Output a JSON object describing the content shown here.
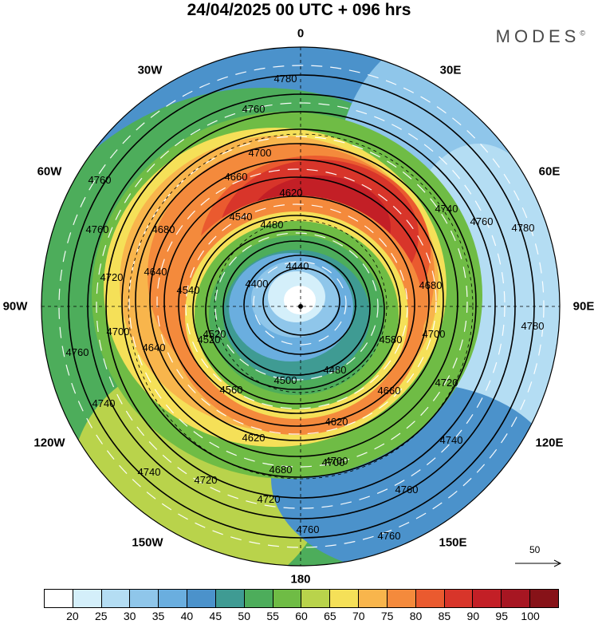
{
  "title": "24/04/2025  00 UTC  + 096 hrs",
  "brand": "MODES",
  "brand_mark": "©",
  "longitude_labels": [
    "0",
    "30E",
    "60E",
    "90E",
    "120E",
    "150E",
    "180",
    "150W",
    "120W",
    "90W",
    "60W",
    "30W"
  ],
  "contours": {
    "values": [
      "4400",
      "4440",
      "4480",
      "4500",
      "4520",
      "4540",
      "4560",
      "4580",
      "4620",
      "4640",
      "4660",
      "4680",
      "4700",
      "4720",
      "4740",
      "4760",
      "4780"
    ]
  },
  "vector_reference": {
    "label": "50"
  },
  "colorbar": {
    "colors": [
      "#ffffff",
      "#d4effa",
      "#b4ddf3",
      "#8fc6ea",
      "#6aaedf",
      "#4b92cb",
      "#3f9b93",
      "#4dad5b",
      "#6fbc45",
      "#b9d34b",
      "#f5e058",
      "#f8b54c",
      "#f48a3c",
      "#ea5a2f",
      "#d8352a",
      "#c31f26",
      "#a71622",
      "#871218"
    ],
    "tick_labels": [
      "20",
      "25",
      "30",
      "35",
      "40",
      "45",
      "50",
      "55",
      "60",
      "65",
      "70",
      "75",
      "80",
      "85",
      "90",
      "95",
      "100"
    ]
  }
}
